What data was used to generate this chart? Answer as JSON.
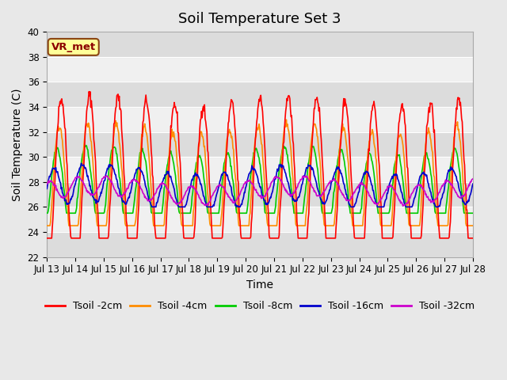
{
  "title": "Soil Temperature Set 3",
  "xlabel": "Time",
  "ylabel": "Soil Temperature (C)",
  "ylim": [
    22,
    40
  ],
  "x_tick_labels": [
    "Jul 13",
    "Jul 14",
    "Jul 15",
    "Jul 16",
    "Jul 17",
    "Jul 18",
    "Jul 19",
    "Jul 20",
    "Jul 21",
    "Jul 22",
    "Jul 23",
    "Jul 24",
    "Jul 25",
    "Jul 26",
    "Jul 27",
    "Jul 28"
  ],
  "legend_entries": [
    "Tsoil -2cm",
    "Tsoil -4cm",
    "Tsoil -8cm",
    "Tsoil -16cm",
    "Tsoil -32cm"
  ],
  "colors": {
    "2cm": "#ff0000",
    "4cm": "#ff8c00",
    "8cm": "#00cc00",
    "16cm": "#0000cc",
    "32cm": "#cc00cc"
  },
  "annotation_text": "VR_met",
  "annotation_bg": "#ffff99",
  "annotation_border": "#8b4513",
  "bg_color": "#e8e8e8",
  "plot_bg": "#f0f0f0",
  "title_fontsize": 13,
  "axis_fontsize": 10,
  "tick_fontsize": 8.5,
  "legend_fontsize": 9,
  "n_days": 15,
  "samples_per_day": 48,
  "base_temp": 26.5,
  "amplitude_2cm": 7.5,
  "amplitude_4cm": 5.5,
  "amplitude_8cm": 3.5,
  "amplitude_16cm": 1.5,
  "amplitude_32cm": 0.75
}
